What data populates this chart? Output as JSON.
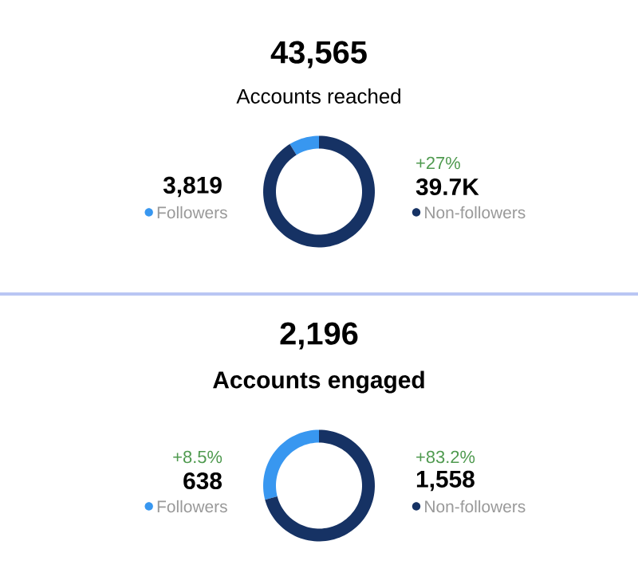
{
  "chart_data": [
    {
      "type": "donut",
      "title": "43,565",
      "subtitle": "Accounts reached",
      "categories": [
        "Followers",
        "Non-followers"
      ],
      "values": [
        3819,
        39746
      ],
      "legend": "bottom",
      "value_labels": [
        "3,819",
        "39.7K"
      ],
      "colors": [
        "#3897f0",
        "#163264"
      ],
      "annotations": [
        {
          "text": "+27%",
          "x": "Non-followers"
        }
      ]
    },
    {
      "type": "donut",
      "title": "2,196",
      "subtitle": "Accounts engaged",
      "categories": [
        "Followers",
        "Non-followers"
      ],
      "values": [
        638,
        1558
      ],
      "legend": "bottom",
      "value_labels": [
        "638",
        "1,558"
      ],
      "colors": [
        "#3897f0",
        "#163264"
      ],
      "annotations": [
        {
          "text": "+8.5%",
          "x": "Followers"
        },
        {
          "text": "+83.2%",
          "x": "Non-followers"
        }
      ]
    }
  ]
}
